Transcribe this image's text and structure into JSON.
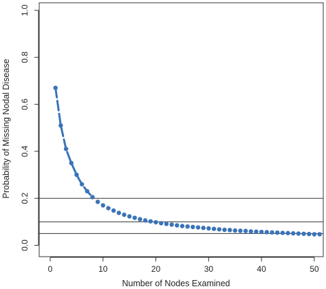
{
  "chart_data": {
    "type": "scatter",
    "title": "",
    "xlabel": "Number of Nodes Examined",
    "ylabel": "Probability of Missing Nodal Disease",
    "xlim": [
      0,
      52
    ],
    "ylim": [
      0,
      1.0
    ],
    "x_ticks": [
      "0",
      "10",
      "20",
      "30",
      "40",
      "50"
    ],
    "y_ticks": [
      "0.0",
      "0.2",
      "0.4",
      "0.6",
      "0.8",
      "1.0"
    ],
    "grid": false,
    "reference_lines_y": [
      0.05,
      0.1,
      0.2
    ],
    "series": [
      {
        "color": "#3a73b9",
        "x": [
          1,
          2,
          3,
          4,
          5,
          6,
          7,
          8,
          9,
          10,
          11,
          12,
          13,
          14,
          15,
          16,
          17,
          18,
          19,
          20,
          21,
          22,
          23,
          24,
          25,
          26,
          27,
          28,
          29,
          30,
          31,
          32,
          33,
          34,
          35,
          36,
          37,
          38,
          39,
          40,
          41,
          42,
          43,
          44,
          45,
          46,
          47,
          48,
          49,
          50,
          51,
          52
        ],
        "y": [
          0.67,
          0.51,
          0.41,
          0.35,
          0.3,
          0.26,
          0.23,
          0.205,
          0.185,
          0.17,
          0.158,
          0.148,
          0.138,
          0.13,
          0.123,
          0.117,
          0.111,
          0.106,
          0.102,
          0.098,
          0.094,
          0.091,
          0.088,
          0.085,
          0.082,
          0.08,
          0.078,
          0.076,
          0.074,
          0.072,
          0.07,
          0.068,
          0.066,
          0.065,
          0.063,
          0.062,
          0.061,
          0.059,
          0.058,
          0.057,
          0.056,
          0.055,
          0.054,
          0.053,
          0.052,
          0.051,
          0.05,
          0.049,
          0.048,
          0.047,
          0.047,
          0.046
        ]
      }
    ]
  }
}
